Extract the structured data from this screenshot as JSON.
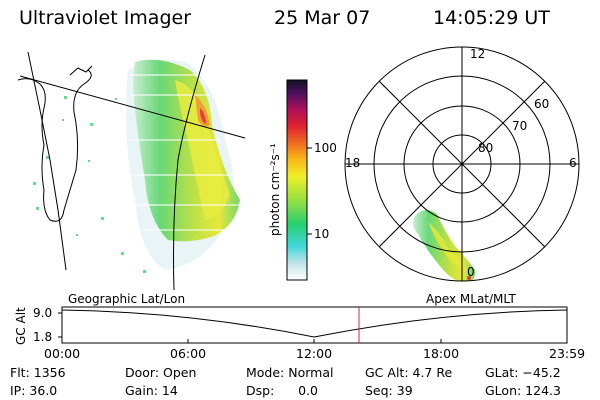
{
  "header": {
    "title": "Ultraviolet Imager",
    "date": "25 Mar 07",
    "time": "14:05:29 UT"
  },
  "colorbar": {
    "unit_label": "photon cm⁻²s⁻¹",
    "ticks": [
      "100",
      "10"
    ]
  },
  "polar": {
    "mlt_labels": {
      "top": "12",
      "left": "18",
      "right": "6",
      "bottom": "0"
    },
    "lat_labels": [
      "60",
      "70",
      "80"
    ]
  },
  "timeline": {
    "left_title": "Geographic Lat/Lon",
    "right_title": "Apex MLat/MLT",
    "y_axis_title": "GC Alt",
    "y_ticks": [
      "9.0",
      "1.8"
    ],
    "x_ticks": [
      "00:00",
      "06:00",
      "12:00",
      "18:00",
      "23:59"
    ],
    "current_time_marker": "14:05"
  },
  "footer": {
    "flt": "Flt: 1356",
    "door": "Door: Open",
    "mode": "Mode: Normal",
    "gc_alt": "GC Alt: 4.7 Re",
    "glat": "GLat: −45.2",
    "ip": "IP: 36.0",
    "gain": "Gain: 14",
    "dsp": "Dsp:      0.0",
    "seq": "Seq: 39",
    "glon": "GLon: 124.3"
  }
}
